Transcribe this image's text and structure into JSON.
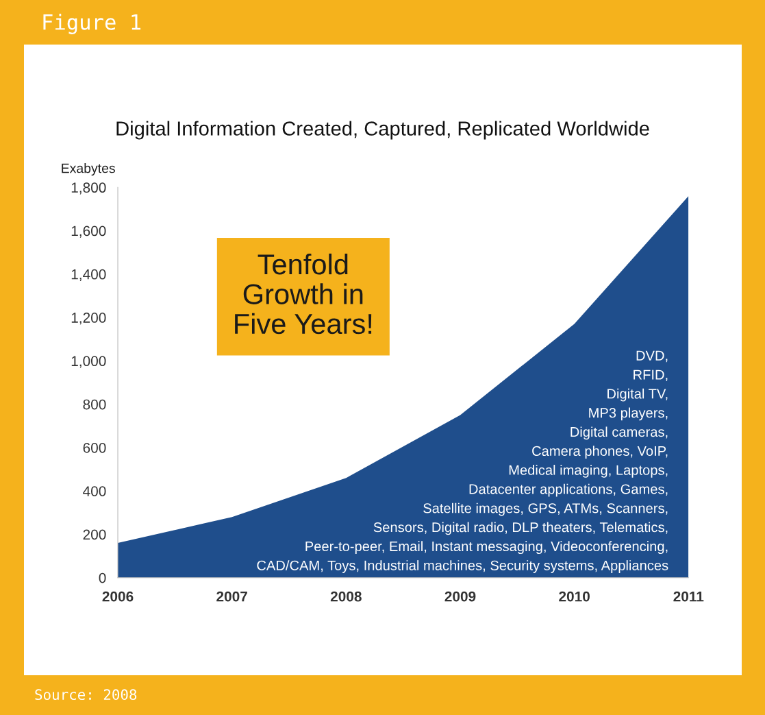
{
  "chart_data": {
    "type": "area",
    "title": "Digital Information Created, Captured, Replicated Worldwide",
    "ylabel": "Exabytes",
    "x": [
      2006,
      2007,
      2008,
      2009,
      2010,
      2011
    ],
    "series": [
      {
        "color": "#1f4e8c",
        "values": [
          160,
          280,
          460,
          750,
          1170,
          1760
        ]
      }
    ],
    "xlim": [
      2006,
      2011
    ],
    "xticks": [
      2006,
      2007,
      2008,
      2009,
      2010,
      2011
    ],
    "ylim": [
      0,
      1800
    ],
    "yticks": [
      {
        "value": 0,
        "label": "0"
      },
      {
        "value": 200,
        "label": "200"
      },
      {
        "value": 400,
        "label": "400"
      },
      {
        "value": 600,
        "label": "600"
      },
      {
        "value": 800,
        "label": "800"
      },
      {
        "value": 1000,
        "label": "1,000"
      },
      {
        "value": 1200,
        "label": "1,200"
      },
      {
        "value": 1400,
        "label": "1,400"
      },
      {
        "value": 1600,
        "label": "1,600"
      },
      {
        "value": 1800,
        "label": "1,800"
      }
    ],
    "grid": false,
    "legend": false,
    "annotations": [
      "Figure 1",
      "Tenfold\nGrowth in\nFive Years!",
      "DVD,\nRFID,\nDigital TV,\nMP3 players,\nDigital cameras,\nCamera phones, VoIP,\nMedical imaging, Laptops,\nDatacenter applications, Games,\nSatellite images, GPS, ATMs, Scanners,\nSensors, Digital radio, DLP theaters, Telematics,\nPeer-to-peer, Email, Instant messaging, Videoconferencing,\nCAD/CAM, Toys, Industrial machines, Security systems, Appliances",
      "Source: 2008"
    ]
  }
}
